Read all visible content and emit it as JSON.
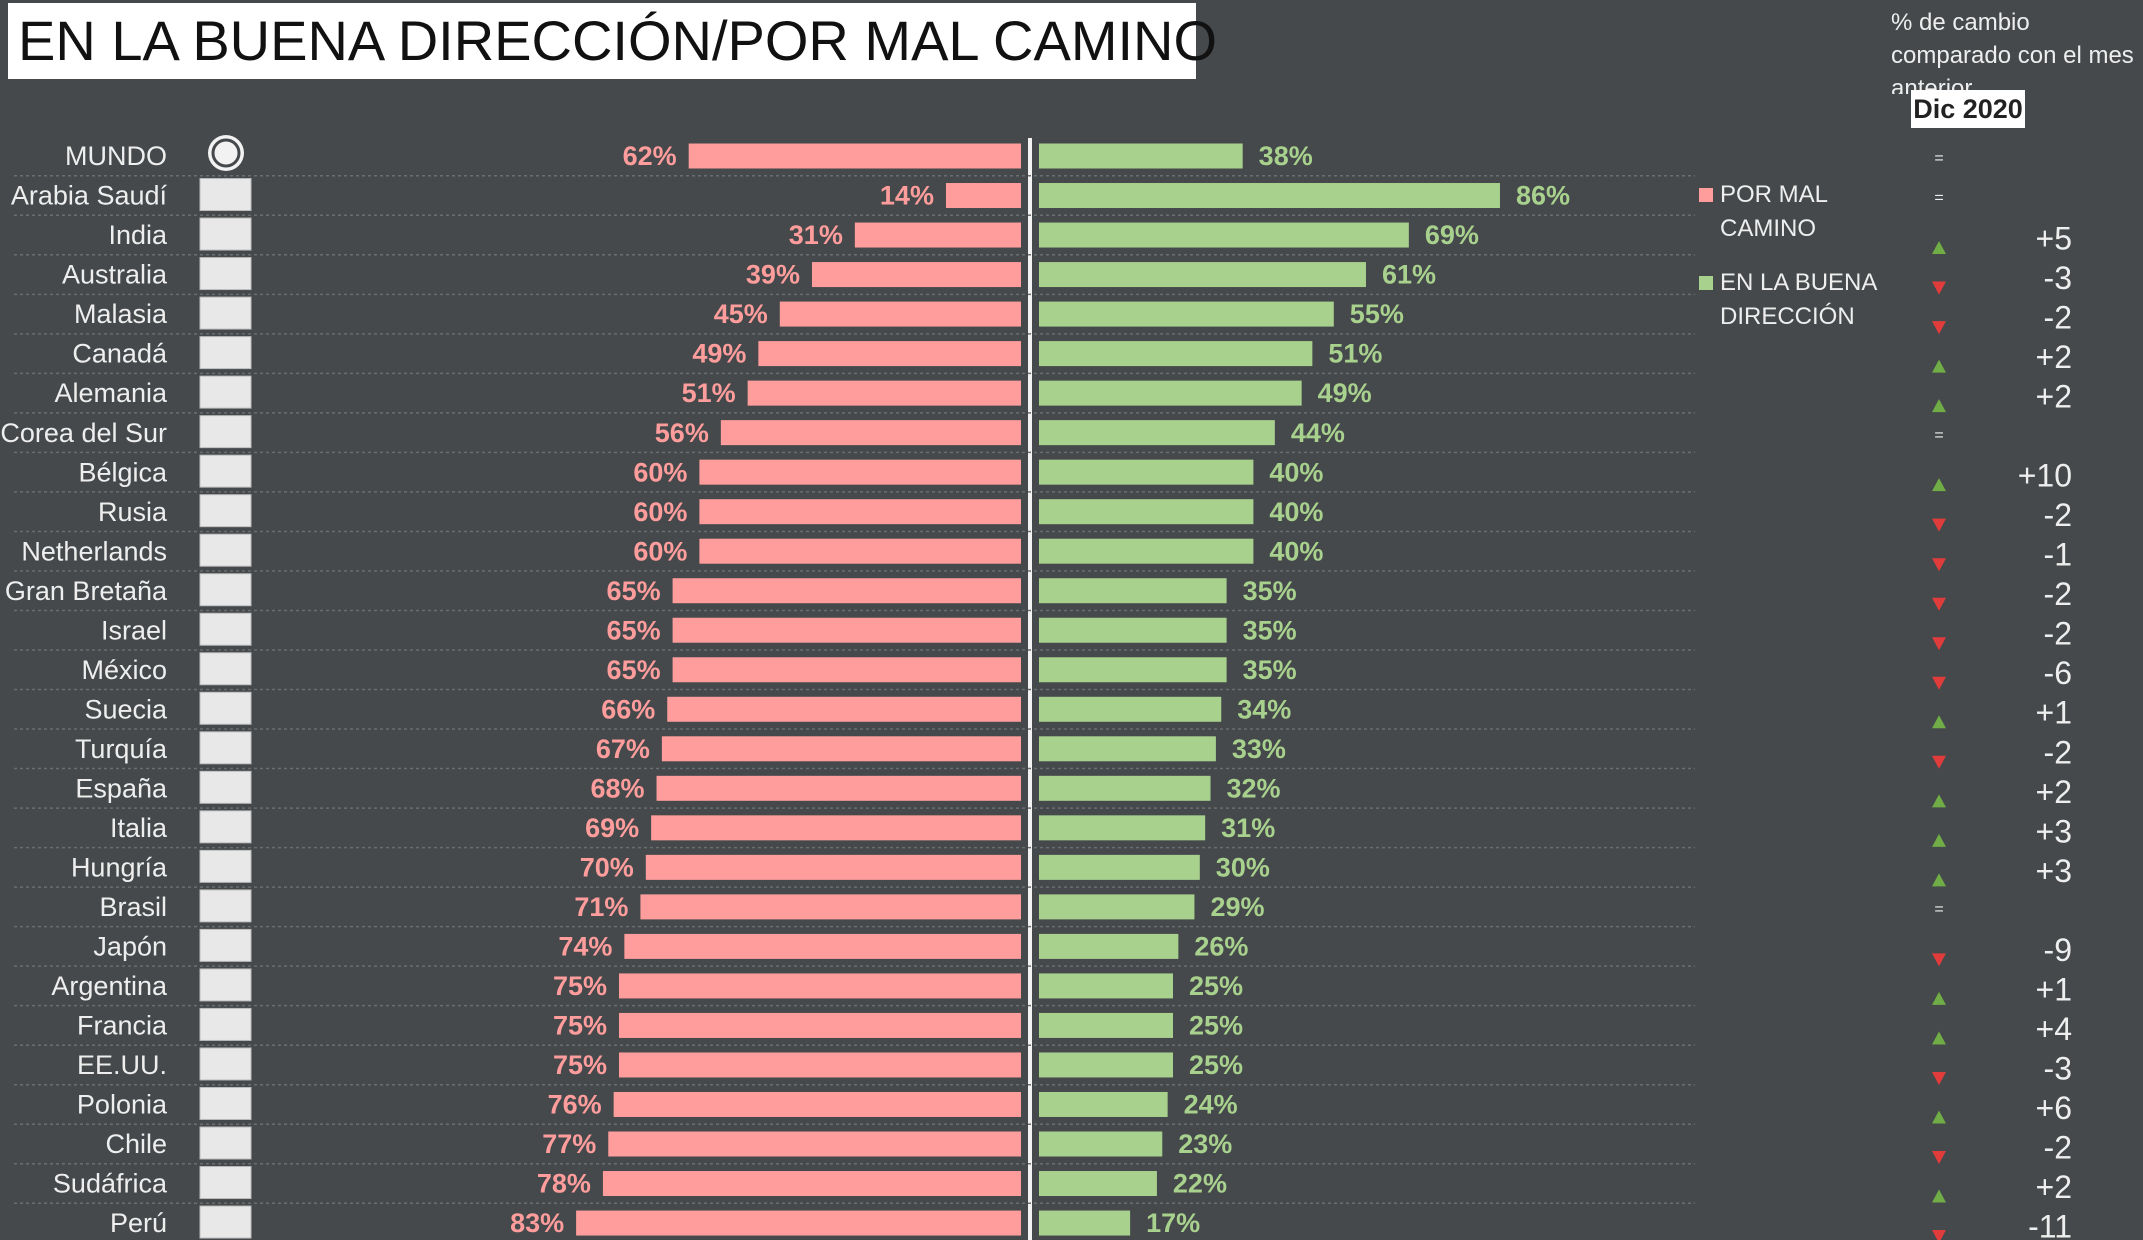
{
  "chart_data": {
    "type": "bar",
    "title": "EN LA BUENA DIRECCIÓN/POR MAL CAMINO",
    "change_header": "% de cambio comparado con el mes anterior",
    "period": "Dic 2020",
    "categories": [
      "MUNDO",
      "Arabia Saudí",
      "India",
      "Australia",
      "Malasia",
      "Canadá",
      "Alemania",
      "Corea del Sur",
      "Bélgica",
      "Rusia",
      "Netherlands",
      "Gran Bretaña",
      "Israel",
      "México",
      "Suecia",
      "Turquía",
      "España",
      "Italia",
      "Hungría",
      "Brasil",
      "Japón",
      "Argentina",
      "Francia",
      "EE.UU.",
      "Polonia",
      "Chile",
      "Sudáfrica",
      "Perú"
    ],
    "series": [
      {
        "name": "POR MAL CAMINO",
        "color": "#ff9d9d",
        "values": [
          62,
          14,
          31,
          39,
          45,
          49,
          51,
          56,
          60,
          60,
          60,
          65,
          65,
          65,
          66,
          67,
          68,
          69,
          70,
          71,
          74,
          75,
          75,
          75,
          76,
          77,
          78,
          83
        ],
        "value_labels": [
          "62%",
          "14%",
          "31%",
          "39%",
          "45%",
          "49%",
          "51%",
          "56%",
          "60%",
          "60%",
          "60%",
          "65%",
          "65%",
          "65%",
          "66%",
          "67%",
          "68%",
          "69%",
          "70%",
          "71%",
          "74%",
          "75%",
          "75%",
          "75%",
          "76%",
          "77%",
          "78%",
          "83%"
        ]
      },
      {
        "name": "EN LA BUENA DIRECCIÓN",
        "color": "#a9d18e",
        "values": [
          38,
          86,
          69,
          61,
          55,
          51,
          49,
          44,
          40,
          40,
          40,
          35,
          35,
          35,
          34,
          33,
          32,
          31,
          30,
          29,
          26,
          25,
          25,
          25,
          24,
          23,
          22,
          17
        ],
        "value_labels": [
          "38%",
          "86%",
          "69%",
          "61%",
          "55%",
          "51%",
          "49%",
          "44%",
          "40%",
          "40%",
          "40%",
          "35%",
          "35%",
          "35%",
          "34%",
          "33%",
          "32%",
          "31%",
          "30%",
          "29%",
          "26%",
          "25%",
          "25%",
          "25%",
          "24%",
          "23%",
          "22%",
          "17%"
        ]
      }
    ],
    "changes": {
      "values": [
        0,
        0,
        5,
        -3,
        -2,
        2,
        2,
        0,
        10,
        -2,
        -1,
        -2,
        -2,
        -6,
        1,
        -2,
        2,
        3,
        3,
        0,
        -9,
        1,
        4,
        -3,
        6,
        -2,
        2,
        -11
      ],
      "value_labels": [
        "=",
        "=",
        "+5",
        "-3",
        "-2",
        "+2",
        "+2",
        "=",
        "+10",
        "-2",
        "-1",
        "-2",
        "-2",
        "-6",
        "+1",
        "-2",
        "+2",
        "+3",
        "+3",
        "=",
        "-9",
        "+1",
        "+4",
        "-3",
        "+6",
        "-2",
        "+2",
        "-11"
      ]
    }
  }
}
